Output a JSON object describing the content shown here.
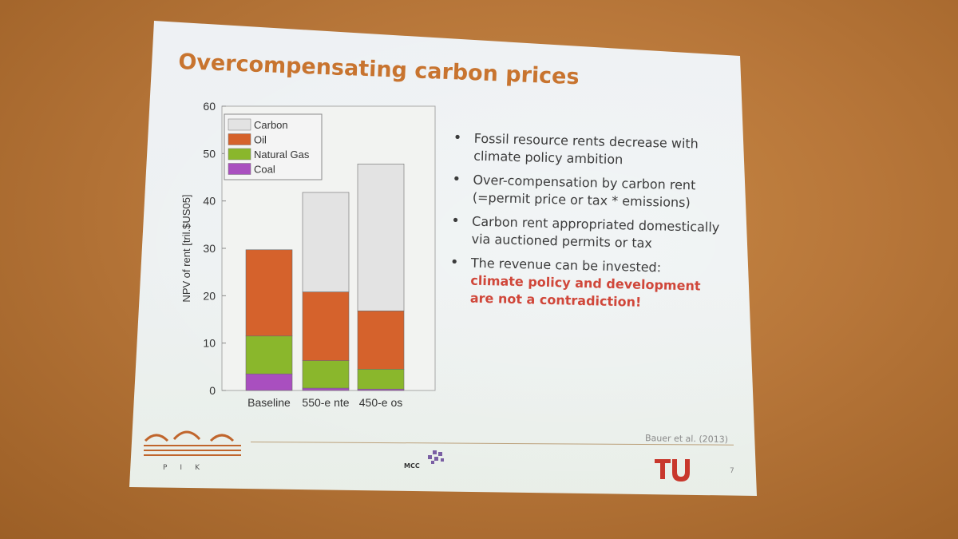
{
  "slide": {
    "title": "Overcompensating carbon prices",
    "citation": "Bauer et al. (2013)",
    "page_number": "7",
    "logos": {
      "pik": "PIK",
      "mcc": "MCC"
    }
  },
  "bullets": [
    {
      "text": "Fossil resource rents decrease with climate policy ambition",
      "emphasis": ""
    },
    {
      "text": "Over-compensation by carbon rent (=permit price or tax * emissions)",
      "emphasis": ""
    },
    {
      "text": "Carbon rent appropriated domestically via auctioned permits or tax",
      "emphasis": ""
    },
    {
      "text": "The revenue can be invested:",
      "emphasis": "climate policy and development are not a contradiction!"
    }
  ],
  "colors": {
    "title": "#c8742f",
    "emphasis": "#d0473a",
    "carbon": "#e3e3e3",
    "oil": "#d5622c",
    "natural_gas": "#8ab72c",
    "coal": "#a94fbf"
  },
  "chart_data": {
    "type": "bar",
    "stacked": true,
    "categories": [
      "Baseline",
      "550-e nte",
      "450-e os"
    ],
    "series": [
      {
        "name": "Coal",
        "values": [
          3.5,
          0.5,
          0.3
        ]
      },
      {
        "name": "Natural Gas",
        "values": [
          8.0,
          5.8,
          4.2
        ]
      },
      {
        "name": "Oil",
        "values": [
          18.2,
          14.5,
          12.3
        ]
      },
      {
        "name": "Carbon",
        "values": [
          0,
          21.0,
          31.0
        ]
      }
    ],
    "legend_order": [
      "Carbon",
      "Oil",
      "Natural Gas",
      "Coal"
    ],
    "ylabel": "NPV of rent [tril.$US05]",
    "ylim": [
      0,
      60
    ],
    "yticks": [
      0,
      10,
      20,
      30,
      40,
      50,
      60
    ],
    "legend_position": "top-left"
  }
}
